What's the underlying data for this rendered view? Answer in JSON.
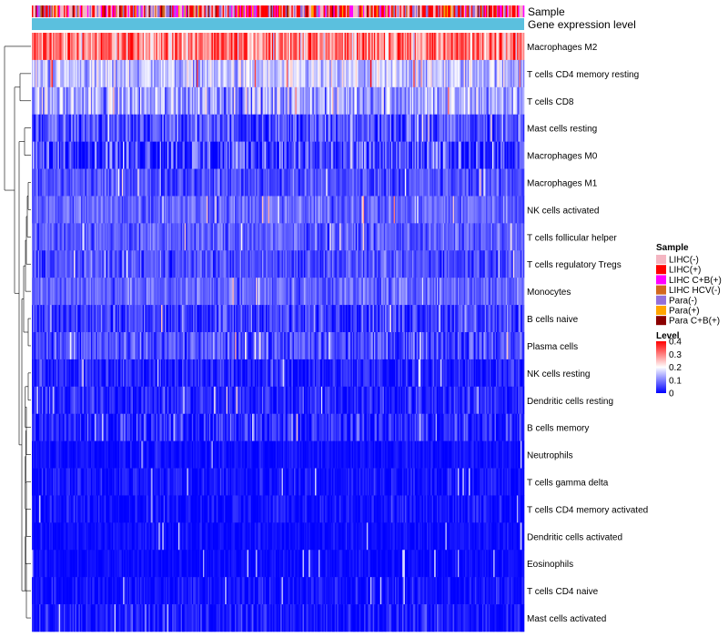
{
  "chart_data": {
    "type": "heatmap",
    "annotation_tracks": [
      "Sample",
      "Gene expression level"
    ],
    "rows": [
      {
        "label": "Macrophages M2",
        "mean": 0.3,
        "spread": 0.09
      },
      {
        "label": "T cells CD4 memory resting",
        "mean": 0.15,
        "spread": 0.06
      },
      {
        "label": "T cells CD8",
        "mean": 0.13,
        "spread": 0.07
      },
      {
        "label": "Mast cells resting",
        "mean": 0.06,
        "spread": 0.06
      },
      {
        "label": "Macrophages M0",
        "mean": 0.05,
        "spread": 0.08
      },
      {
        "label": "Macrophages M1",
        "mean": 0.06,
        "spread": 0.04
      },
      {
        "label": "NK cells activated",
        "mean": 0.08,
        "spread": 0.04
      },
      {
        "label": "T cells follicular helper",
        "mean": 0.07,
        "spread": 0.04
      },
      {
        "label": "T cells regulatory  Tregs",
        "mean": 0.06,
        "spread": 0.04
      },
      {
        "label": "Monocytes",
        "mean": 0.08,
        "spread": 0.04
      },
      {
        "label": "B cells naive",
        "mean": 0.05,
        "spread": 0.05
      },
      {
        "label": "Plasma cells",
        "mean": 0.06,
        "spread": 0.05
      },
      {
        "label": "NK cells resting",
        "mean": 0.025,
        "spread": 0.04
      },
      {
        "label": "Dendritic cells resting",
        "mean": 0.03,
        "spread": 0.04
      },
      {
        "label": "B cells memory",
        "mean": 0.025,
        "spread": 0.05
      },
      {
        "label": "Neutrophils",
        "mean": 0.01,
        "spread": 0.02
      },
      {
        "label": "T cells gamma delta",
        "mean": 0.012,
        "spread": 0.03
      },
      {
        "label": "T cells CD4 memory activated",
        "mean": 0.01,
        "spread": 0.03
      },
      {
        "label": "Dendritic cells activated",
        "mean": 0.008,
        "spread": 0.02
      },
      {
        "label": "Eosinophils",
        "mean": 0.006,
        "spread": 0.02
      },
      {
        "label": "T cells CD4 naive",
        "mean": 0.01,
        "spread": 0.03
      },
      {
        "label": "Mast cells activated",
        "mean": 0.015,
        "spread": 0.04
      }
    ],
    "sample_legend": {
      "title": "Sample",
      "items": [
        {
          "label": "LIHC(-)",
          "color": "#f4b6c2"
        },
        {
          "label": "LIHC(+)",
          "color": "#ff0000"
        },
        {
          "label": "LIHC C+B(+)",
          "color": "#ff00ff"
        },
        {
          "label": "LIHC HCV(-)",
          "color": "#d2691e"
        },
        {
          "label": "Para(-)",
          "color": "#9370db"
        },
        {
          "label": "Para(+)",
          "color": "#ffa500"
        },
        {
          "label": "Para C+B(+)",
          "color": "#8b0000"
        }
      ]
    },
    "level_legend": {
      "title": "Level",
      "ticks": [
        "0.4",
        "0.3",
        "0.2",
        "0.1",
        "0"
      ],
      "range": [
        0,
        0.4
      ],
      "colors": [
        "#0000ff",
        "#ffffff",
        "#ff0000"
      ]
    },
    "expression_bar_color": "#5bc0de",
    "n_samples": 400
  }
}
